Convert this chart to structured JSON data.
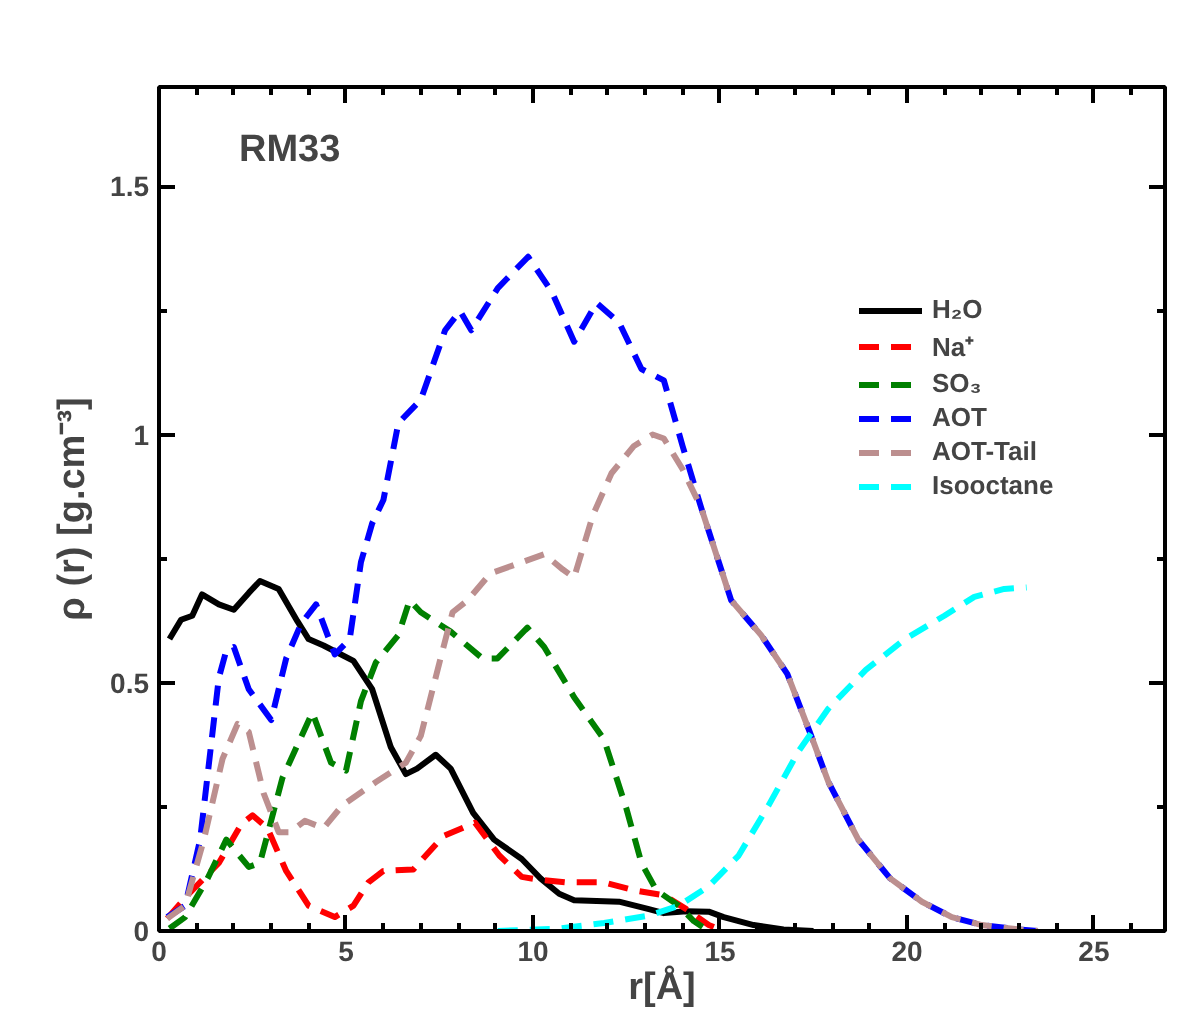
{
  "chart_data": {
    "type": "line",
    "xlabel": "r[Å]",
    "ylabel": "ρ (r) [g.cm⁻³]",
    "annotations": [
      "RM33"
    ],
    "xlim": [
      0,
      26.9
    ],
    "ylim": [
      0,
      1.7
    ],
    "xticks": [
      0,
      5,
      10,
      15,
      20,
      25
    ],
    "yticks": [
      0,
      0.5,
      {
        "value": 1,
        "label": "1"
      },
      1.5
    ],
    "grid": false,
    "legend": "top right",
    "marker": "none",
    "series": [
      {
        "name": "H₂O",
        "color": "#000000",
        "line_style": "solid",
        "x": [
          0.28,
          0.59,
          0.89,
          1.15,
          1.6,
          2.0,
          2.4,
          2.7,
          3.2,
          3.7,
          4.0,
          4.4,
          5.2,
          5.7,
          6.2,
          6.6,
          6.9,
          7.4,
          7.8,
          8.4,
          8.96,
          9.7,
          10.2,
          10.7,
          11.1,
          12.3,
          13.1,
          13.5,
          14.1,
          14.7,
          15.1,
          15.9,
          16.7,
          17.5
        ],
        "values": [
          0.588,
          0.627,
          0.635,
          0.678,
          0.658,
          0.647,
          0.681,
          0.705,
          0.689,
          0.624,
          0.588,
          0.575,
          0.544,
          0.487,
          0.37,
          0.316,
          0.327,
          0.355,
          0.327,
          0.238,
          0.184,
          0.145,
          0.106,
          0.075,
          0.062,
          0.059,
          0.044,
          0.036,
          0.04,
          0.039,
          0.028,
          0.012,
          0.003,
          0
        ]
      },
      {
        "name": "Na⁺",
        "color": "#ff0000",
        "line_style": "dashed",
        "x": [
          0.22,
          0.8,
          1.6,
          2.2,
          2.5,
          2.9,
          3.4,
          4.0,
          4.7,
          5.2,
          5.6,
          6.0,
          6.8,
          7.6,
          8.45,
          9.1,
          9.7,
          10.2,
          10.9,
          11.9,
          12.7,
          13.5,
          14.1,
          14.7,
          15.1
        ],
        "values": [
          0.025,
          0.075,
          0.137,
          0.215,
          0.233,
          0.207,
          0.121,
          0.051,
          0.028,
          0.051,
          0.098,
          0.121,
          0.124,
          0.191,
          0.218,
          0.152,
          0.109,
          0.103,
          0.098,
          0.098,
          0.082,
          0.072,
          0.044,
          0.012,
          0
        ]
      },
      {
        "name": "SO₃",
        "color": "#008000",
        "line_style": "dashed",
        "x": [
          0.28,
          0.7,
          1.3,
          1.8,
          2.4,
          2.7,
          3.3,
          4.1,
          4.6,
          5.0,
          5.4,
          5.8,
          6.4,
          6.7,
          7.0,
          7.8,
          8.65,
          9.05,
          9.85,
          10.3,
          11.1,
          11.9,
          12.5,
          12.9,
          13.3,
          13.9,
          14.3,
          14.7
        ],
        "values": [
          0.005,
          0.028,
          0.106,
          0.184,
          0.129,
          0.137,
          0.308,
          0.44,
          0.339,
          0.323,
          0.463,
          0.541,
          0.596,
          0.666,
          0.642,
          0.603,
          0.549,
          0.549,
          0.611,
          0.572,
          0.471,
          0.386,
          0.246,
          0.137,
          0.082,
          0.051,
          0.02,
          0
        ]
      },
      {
        "name": "AOT",
        "color": "#0000ff",
        "line_style": "dashed",
        "x": [
          0.22,
          0.7,
          1.1,
          1.6,
          1.8,
          2.0,
          2.4,
          3.0,
          3.4,
          3.8,
          4.2,
          4.7,
          5.1,
          5.4,
          5.7,
          6.0,
          6.4,
          7.0,
          7.65,
          8.05,
          8.35,
          9.06,
          9.87,
          10.5,
          11.1,
          11.7,
          12.3,
          12.9,
          13.5,
          14.0,
          14.5,
          15.3,
          16.1,
          16.8,
          17.4,
          17.9,
          18.7,
          19.55,
          20.4,
          21.2,
          22.0,
          23.0,
          23.5
        ],
        "values": [
          0.028,
          0.051,
          0.184,
          0.51,
          0.565,
          0.572,
          0.487,
          0.425,
          0.549,
          0.619,
          0.658,
          0.557,
          0.588,
          0.743,
          0.821,
          0.868,
          1.023,
          1.07,
          1.21,
          1.249,
          1.21,
          1.295,
          1.358,
          1.288,
          1.187,
          1.265,
          1.226,
          1.132,
          1.109,
          0.977,
          0.852,
          0.666,
          0.596,
          0.518,
          0.401,
          0.3,
          0.184,
          0.106,
          0.059,
          0.028,
          0.012,
          0.003,
          0
        ]
      },
      {
        "name": "AOT-Tail",
        "color": "#bc8f8f",
        "line_style": "dashed",
        "x": [
          0.22,
          0.7,
          1.2,
          1.7,
          2.1,
          2.4,
          2.8,
          3.2,
          3.5,
          3.9,
          4.4,
          4.9,
          5.8,
          6.6,
          7.0,
          7.5,
          7.85,
          8.25,
          8.86,
          9.45,
          10.3,
          10.8,
          11.1,
          11.6,
          12.1,
          12.7,
          13.2,
          13.5,
          14.0,
          14.5,
          15.3,
          16.1,
          16.8,
          17.4,
          17.9,
          18.7,
          19.55,
          20.4,
          21.2,
          22.0,
          23.0,
          23.5
        ],
        "values": [
          0.025,
          0.051,
          0.184,
          0.347,
          0.417,
          0.401,
          0.277,
          0.199,
          0.199,
          0.222,
          0.207,
          0.253,
          0.3,
          0.339,
          0.393,
          0.541,
          0.642,
          0.666,
          0.72,
          0.736,
          0.759,
          0.728,
          0.712,
          0.837,
          0.922,
          0.977,
          1.0,
          0.992,
          0.93,
          0.852,
          0.666,
          0.596,
          0.518,
          0.401,
          0.3,
          0.184,
          0.106,
          0.059,
          0.028,
          0.012,
          0.003,
          0
        ]
      },
      {
        "name": "Isooctane",
        "color": "#00ffff",
        "line_style": "dashed",
        "x": [
          9.06,
          10.7,
          11.9,
          13.1,
          13.9,
          14.7,
          15.5,
          16.3,
          17.1,
          17.9,
          18.9,
          19.95,
          21.0,
          21.8,
          22.6,
          23.2
        ],
        "values": [
          0,
          0.005,
          0.016,
          0.031,
          0.051,
          0.09,
          0.152,
          0.253,
          0.362,
          0.448,
          0.526,
          0.588,
          0.635,
          0.673,
          0.689,
          0.692
        ]
      }
    ]
  }
}
